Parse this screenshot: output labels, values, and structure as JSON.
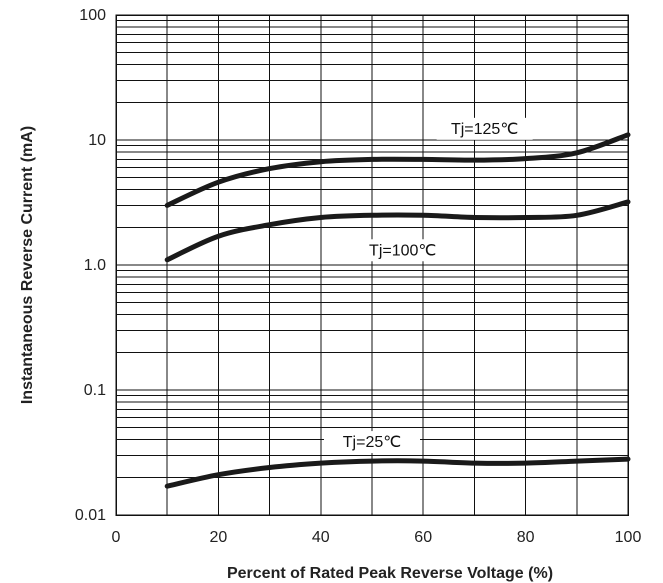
{
  "chart_data": {
    "type": "line",
    "title": "",
    "xlabel": "Percent of Rated Peak Reverse Voltage (%)",
    "ylabel": "Instantaneous Reverse Current (mA)",
    "xlim": [
      0,
      100
    ],
    "ylim": [
      0.01,
      100
    ],
    "yscale": "log",
    "grid": true,
    "x_ticks": [
      0,
      20,
      40,
      60,
      80,
      100
    ],
    "x_tick_labels": [
      "0",
      "20",
      "40",
      "60",
      "80",
      "100"
    ],
    "y_ticks": [
      0.01,
      0.1,
      1,
      10,
      100
    ],
    "y_tick_labels": [
      "0.01",
      "0.1",
      "1.0",
      "10",
      "100"
    ],
    "series": [
      {
        "name": "Tj=125℃",
        "x": [
          10,
          20,
          30,
          40,
          50,
          60,
          70,
          80,
          90,
          100
        ],
        "y": [
          3.0,
          4.6,
          5.9,
          6.7,
          7.0,
          7.0,
          6.9,
          7.1,
          7.9,
          11.0
        ]
      },
      {
        "name": "Tj=100℃",
        "x": [
          10,
          20,
          30,
          40,
          50,
          60,
          70,
          80,
          90,
          100
        ],
        "y": [
          1.1,
          1.7,
          2.1,
          2.4,
          2.5,
          2.5,
          2.4,
          2.4,
          2.5,
          3.2
        ]
      },
      {
        "name": "Tj=25℃",
        "x": [
          10,
          20,
          30,
          40,
          50,
          60,
          70,
          80,
          90,
          100
        ],
        "y": [
          0.017,
          0.021,
          0.024,
          0.026,
          0.027,
          0.027,
          0.026,
          0.026,
          0.027,
          0.028
        ]
      }
    ]
  }
}
